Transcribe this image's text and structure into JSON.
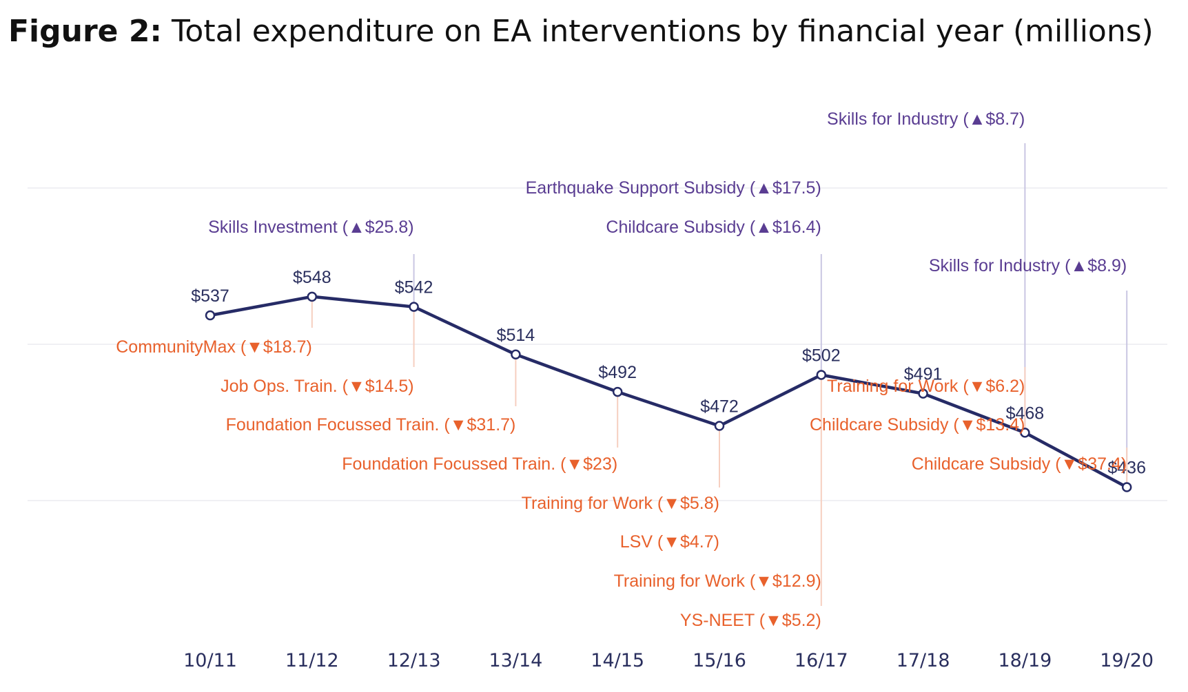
{
  "title": {
    "prefix": "Figure 2:",
    "text": "Total expenditure on EA interventions by financial year (millions)"
  },
  "colors": {
    "line": "#262b66",
    "increase": "#5a3d92",
    "decrease": "#e8612c",
    "increase_leader": "#c9c6e2",
    "decrease_leader": "#f6cfc0",
    "grid": "#ececf0"
  },
  "chart_data": {
    "type": "line",
    "x": [
      "10/11",
      "11/12",
      "12/13",
      "13/14",
      "14/15",
      "15/16",
      "16/17",
      "17/18",
      "18/19",
      "19/20"
    ],
    "series": [
      {
        "values": [
          537,
          548,
          542,
          514,
          492,
          472,
          502,
          491,
          468,
          436
        ],
        "labels": [
          "$537",
          "$548",
          "$542",
          "$514",
          "$492",
          "$472",
          "$502",
          "$491",
          "$468",
          "$436"
        ]
      }
    ],
    "grid": true,
    "annotations": [
      {
        "x": "12/13",
        "direction": "increase",
        "text": "Skills Investment (▲$25.8)"
      },
      {
        "x": "16/17",
        "direction": "increase",
        "text": "Earthquake Support Subsidy (▲$17.5)"
      },
      {
        "x": "16/17",
        "direction": "increase",
        "text": "Childcare Subsidy (▲$16.4)"
      },
      {
        "x": "18/19",
        "direction": "increase",
        "text": "Skills for Industry (▲$8.7)"
      },
      {
        "x": "19/20",
        "direction": "increase",
        "text": "Skills for Industry (▲$8.9)"
      },
      {
        "x": "11/12",
        "direction": "decrease",
        "text": "CommunityMax (▼$18.7)"
      },
      {
        "x": "12/13",
        "direction": "decrease",
        "text": "Job Ops. Train. (▼$14.5)"
      },
      {
        "x": "13/14",
        "direction": "decrease",
        "text": "Foundation Focussed Train. (▼$31.7)"
      },
      {
        "x": "14/15",
        "direction": "decrease",
        "text": "Foundation Focussed Train. (▼$23)"
      },
      {
        "x": "15/16",
        "direction": "decrease",
        "text": "Training for Work (▼$5.8)"
      },
      {
        "x": "15/16",
        "direction": "decrease",
        "text": "LSV (▼$4.7)"
      },
      {
        "x": "16/17",
        "direction": "decrease",
        "text": "Training for Work (▼$12.9)"
      },
      {
        "x": "16/17",
        "direction": "decrease",
        "text": "YS-NEET (▼$5.2)"
      },
      {
        "x": "18/19",
        "direction": "decrease",
        "text": "Training for Work (▼$6.2)"
      },
      {
        "x": "18/19",
        "direction": "decrease",
        "text": "Childcare Subsidy (▼$13.4)"
      },
      {
        "x": "19/20",
        "direction": "decrease",
        "text": "Childcare Subsidy (▼$37.4)"
      }
    ]
  }
}
